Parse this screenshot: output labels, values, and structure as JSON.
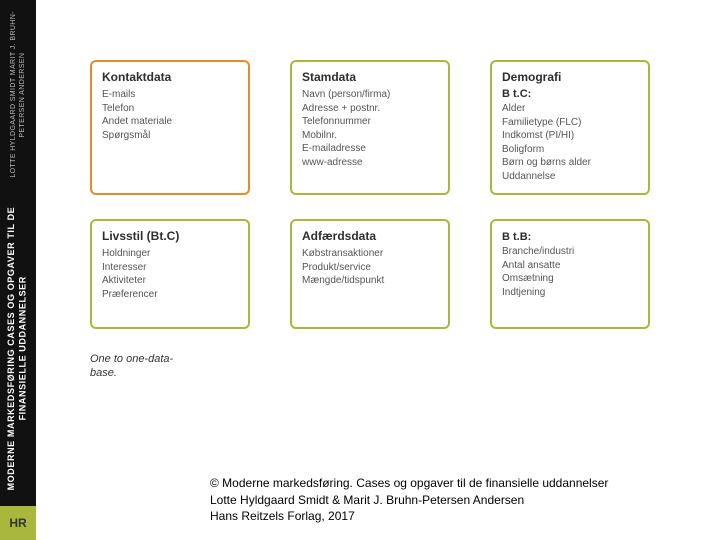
{
  "spine": {
    "authors_small": "LOTTE HYLDGAARD SMIDT\nMARIT J. BRUHN-PETERSEN ANDERSEN",
    "title": "MODERNE MARKEDSFØRING CASES OG OPGAVER TIL DE FINANSIELLE UDDANNELSER",
    "logo": "HR"
  },
  "colors": {
    "olive": "#a9b83d",
    "orange": "#e68a2e",
    "text": "#555555"
  },
  "grid": {
    "rows": [
      [
        {
          "color_key": "orange",
          "heading": "Kontaktdata",
          "items": [
            "E-mails",
            "Telefon",
            "Andet materiale",
            "Spørgsmål"
          ]
        },
        {
          "color_key": "olive",
          "heading": "Stamdata",
          "items": [
            "Navn (person/firma)",
            "Adresse + postnr.",
            "Telefonnummer",
            "Mobilnr.",
            "E-mailadresse",
            "www-adresse"
          ]
        },
        {
          "color_key": "olive",
          "heading": "Demografi",
          "subhead": "B t.C:",
          "items": [
            "Alder",
            "Familietype (FLC)",
            "Indkomst (PI/HI)",
            "Boligform",
            "Børn og børns alder",
            "Uddannelse"
          ]
        }
      ],
      [
        {
          "color_key": "olive",
          "heading": "Livsstil (Bt.C)",
          "items": [
            "Holdninger",
            "Interesser",
            "Aktiviteter",
            "Præferencer"
          ]
        },
        {
          "color_key": "olive",
          "heading": "Adfærdsdata",
          "items": [
            "Købstransaktioner",
            "Produkt/service",
            "Mængde/tidspunkt"
          ]
        },
        {
          "color_key": "olive",
          "heading": "",
          "subhead": "B t.B:",
          "items": [
            "Branche/industri",
            "Antal ansatte",
            "Omsætning",
            "Indtjening"
          ]
        }
      ]
    ]
  },
  "caption_lines": [
    "One to one-data-",
    "base."
  ],
  "credits": {
    "line1": "© Moderne markedsføring. Cases og opgaver til de finansielle uddannelser",
    "line2": "Lotte Hyldgaard Smidt & Marit J. Bruhn-Petersen Andersen",
    "line3": "Hans Reitzels Forlag, 2017"
  }
}
